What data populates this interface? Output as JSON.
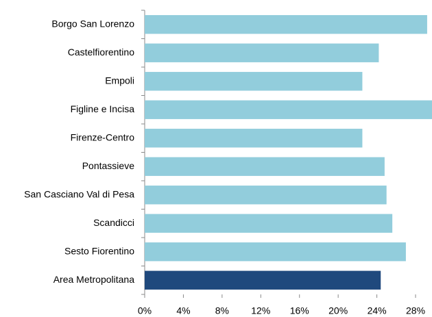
{
  "chart_data": {
    "type": "barh",
    "categories": [
      "Borgo San Lorenzo",
      "Castelfiorentino",
      "Empoli",
      "Figline e Incisa",
      "Firenze-Centro",
      "Pontassieve",
      "San Casciano Val di Pesa",
      "Scandicci",
      "Sesto Fiorentino",
      "Area Metropolitana"
    ],
    "values": [
      29.2,
      24.2,
      22.5,
      29.7,
      22.5,
      24.8,
      25.0,
      25.6,
      27.0,
      24.4
    ],
    "colors": [
      "#92cddc",
      "#92cddc",
      "#92cddc",
      "#92cddc",
      "#92cddc",
      "#92cddc",
      "#92cddc",
      "#92cddc",
      "#92cddc",
      "#1f497d"
    ],
    "xlim": [
      0,
      29.7
    ],
    "xticks": [
      {
        "value": 0,
        "label": "0%"
      },
      {
        "value": 4,
        "label": "4%"
      },
      {
        "value": 8,
        "label": "8%"
      },
      {
        "value": 12,
        "label": "12%"
      },
      {
        "value": 16,
        "label": "16%"
      },
      {
        "value": 20,
        "label": "20%"
      },
      {
        "value": 24,
        "label": "24%"
      },
      {
        "value": 28,
        "label": "28%"
      }
    ],
    "grid": false
  }
}
